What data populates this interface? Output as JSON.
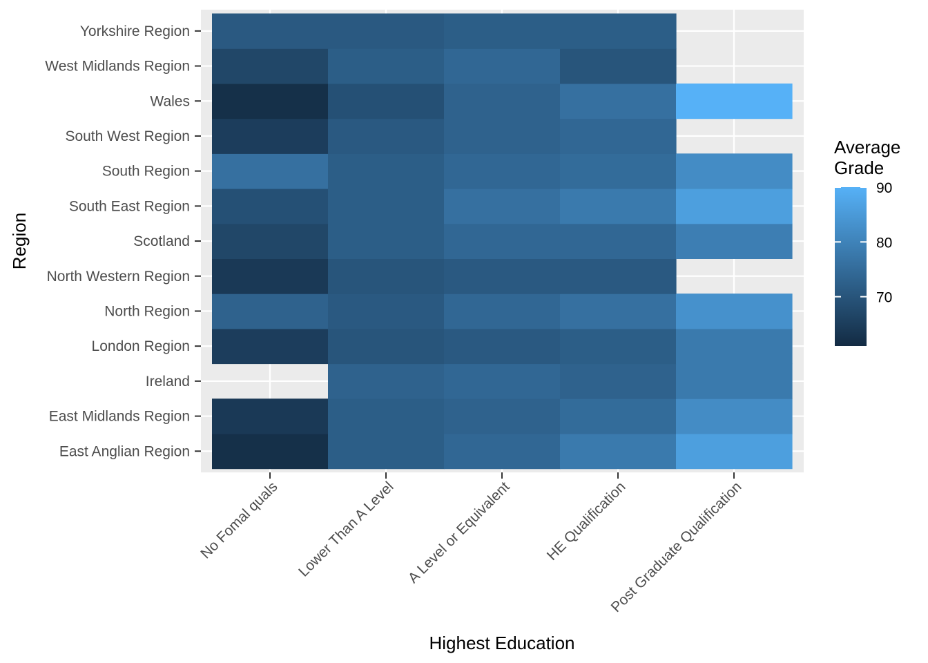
{
  "chart_data": {
    "type": "heatmap",
    "title": "",
    "xlabel": "Highest Education",
    "ylabel": "Region",
    "x_categories": [
      "No Fomal quals",
      "Lower Than A Level",
      "A Level or Equivalent",
      "HE Qualification",
      "Post Graduate Qualification"
    ],
    "y_categories": [
      "East Anglian Region",
      "East Midlands Region",
      "Ireland",
      "London Region",
      "North Region",
      "North Western Region",
      "Scotland",
      "South East Region",
      "South Region",
      "South West Region",
      "Wales",
      "West Midlands Region",
      "Yorkshire Region"
    ],
    "values": [
      [
        62,
        72,
        74,
        78,
        86
      ],
      [
        64,
        72,
        73,
        75,
        82
      ],
      [
        null,
        73,
        74,
        73,
        78
      ],
      [
        65,
        70,
        71,
        72,
        78
      ],
      [
        73,
        71,
        74,
        76,
        83
      ],
      [
        64,
        70,
        71,
        71,
        null
      ],
      [
        67,
        72,
        74,
        74,
        79
      ],
      [
        69,
        72,
        76,
        78,
        86
      ],
      [
        76,
        72,
        74,
        75,
        82
      ],
      [
        65,
        71,
        73,
        74,
        null
      ],
      [
        62,
        69,
        73,
        76,
        90
      ],
      [
        67,
        72,
        74,
        70,
        null
      ],
      [
        71,
        71,
        72,
        72,
        null
      ]
    ],
    "legend": {
      "title": [
        "Average",
        "Grade"
      ],
      "ticks": [
        70,
        80,
        90
      ],
      "range": [
        61,
        90
      ],
      "low_color": "#132B43",
      "high_color": "#56B1F7",
      "placement": "right"
    },
    "grid": true,
    "panel_background": "#EBEBEB",
    "grid_color": "#FFFFFF"
  }
}
